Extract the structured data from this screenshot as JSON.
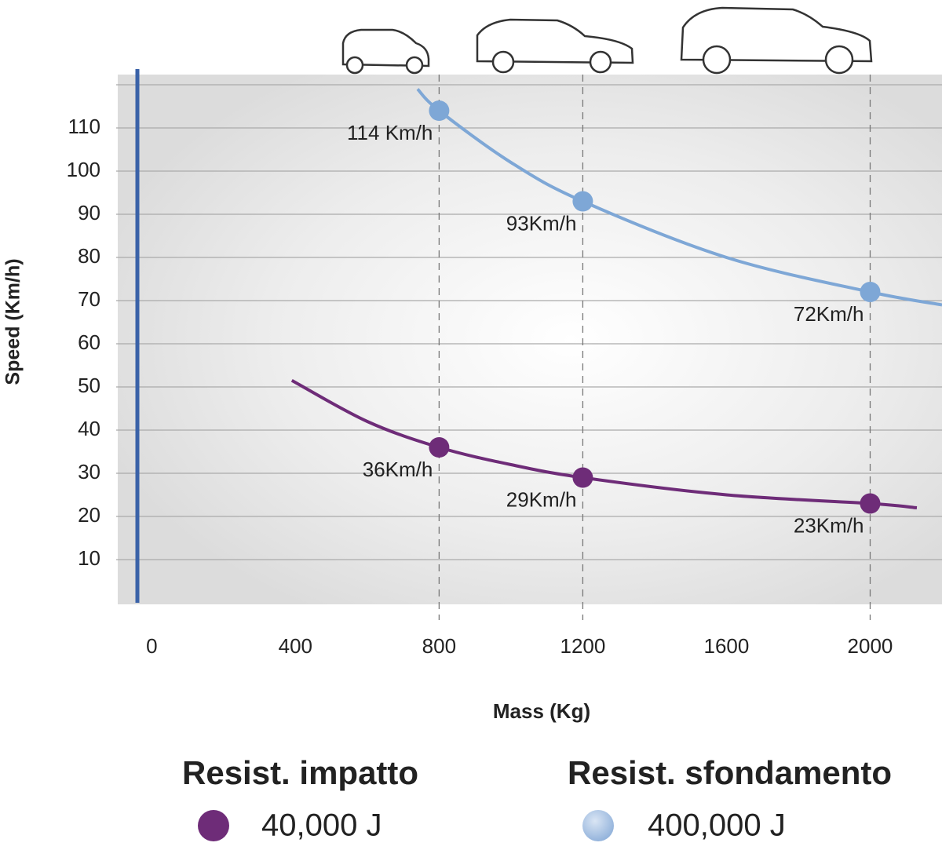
{
  "chart_data": {
    "type": "line",
    "x_label": "Mass (Kg)",
    "y_label": "Speed (Km/h)",
    "xlim": [
      -40,
      2200
    ],
    "xticks": [
      0,
      400,
      800,
      1200,
      1600,
      2000
    ],
    "ylim": [
      0,
      120
    ],
    "yticks": [
      10,
      20,
      30,
      40,
      50,
      60,
      70,
      80,
      90,
      100,
      110
    ],
    "grid": true,
    "series": [
      {
        "name": "Resist. impatto",
        "energy": "40,000 J",
        "color": "#6e2c78",
        "x": [
          800,
          1200,
          2000
        ],
        "values": [
          36,
          29,
          23
        ],
        "value_labels": [
          "36Km/h",
          "29Km/h",
          "23Km/h"
        ],
        "curve": {
          "x": [
            390,
            600,
            800,
            1000,
            1200,
            1600,
            2000,
            2130
          ],
          "values": [
            51.5,
            42,
            36,
            32,
            29,
            25,
            23,
            22
          ]
        }
      },
      {
        "name": "Resist. sfondamento",
        "energy": "400,000 J",
        "color": "#7ea7d6",
        "x": [
          800,
          1200,
          2000
        ],
        "values": [
          114,
          93,
          72
        ],
        "value_labels": [
          "114 Km/h",
          "93Km/h",
          "72Km/h"
        ],
        "curve": {
          "x": [
            740,
            800,
            1000,
            1200,
            1600,
            2000,
            2200
          ],
          "values": [
            119,
            114,
            102,
            93,
            80,
            72,
            69
          ]
        }
      }
    ]
  }
}
